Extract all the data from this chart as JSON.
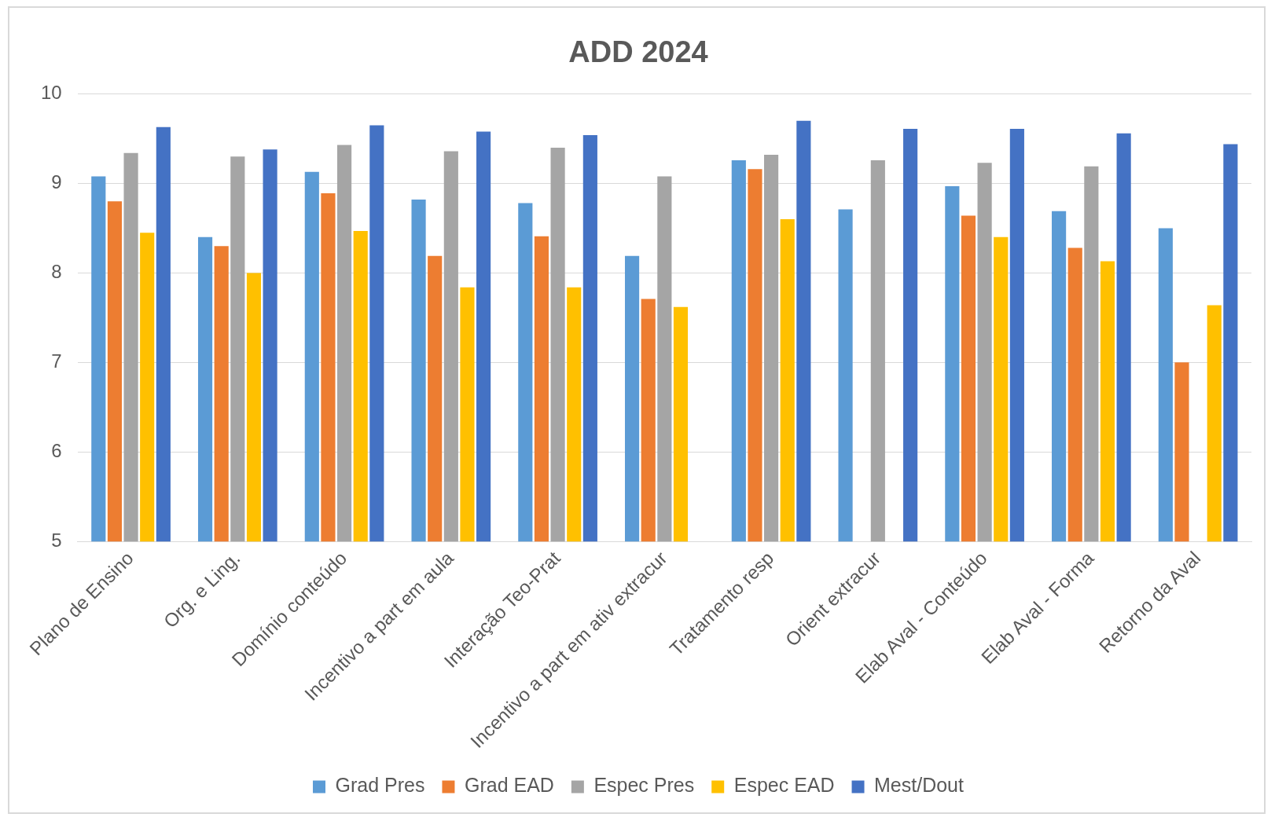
{
  "chart_data": {
    "type": "bar",
    "title": "ADD 2024",
    "categories": [
      "Plano de Ensino",
      "Org. e Ling.",
      "Domínio conteúdo",
      "Incentivo a part em aula",
      "Interação Teo-Prat",
      "Incentivo a part em ativ extracur",
      "Tratamento resp",
      "Orient extracur",
      "Elab Aval - Conteúdo",
      "Elab Aval - Forma",
      "Retorno da Aval"
    ],
    "series": [
      {
        "name": "Grad Pres",
        "color": "#5b9bd5",
        "values": [
          9.08,
          8.4,
          9.13,
          8.82,
          8.78,
          8.19,
          9.26,
          8.71,
          8.97,
          8.69,
          8.5
        ]
      },
      {
        "name": "Grad EAD",
        "color": "#ed7d31",
        "values": [
          8.8,
          8.3,
          8.89,
          8.19,
          8.41,
          7.71,
          9.16,
          null,
          8.64,
          8.28,
          7.0
        ]
      },
      {
        "name": "Espec Pres",
        "color": "#a5a5a5",
        "values": [
          9.34,
          9.3,
          9.43,
          9.36,
          9.4,
          9.08,
          9.32,
          9.26,
          9.23,
          9.19,
          null
        ]
      },
      {
        "name": "Espec EAD",
        "color": "#ffc000",
        "values": [
          8.45,
          8.0,
          8.47,
          7.84,
          7.84,
          7.62,
          8.6,
          null,
          8.4,
          8.13,
          7.64
        ]
      },
      {
        "name": "Mest/Dout",
        "color": "#4472c4",
        "values": [
          9.63,
          9.38,
          9.65,
          9.58,
          9.54,
          null,
          9.7,
          9.61,
          9.61,
          9.56,
          9.44
        ]
      }
    ],
    "ylim": [
      5,
      10
    ],
    "yticks": [
      5,
      6,
      7,
      8,
      9,
      10
    ],
    "grid": "y",
    "legend": "bottom"
  }
}
